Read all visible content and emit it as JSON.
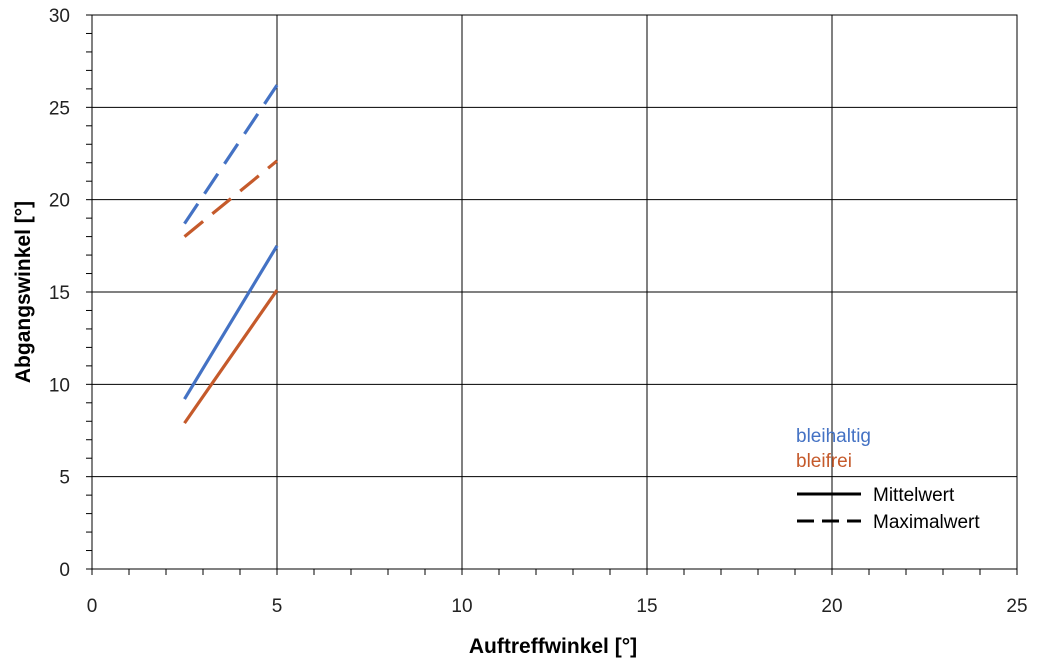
{
  "chart_data": {
    "type": "line",
    "title": "",
    "xlabel": "Auftreffwinkel [°]",
    "ylabel": "Abgangswinkel [°]",
    "xlim": [
      0,
      25
    ],
    "ylim": [
      0,
      30
    ],
    "x_major_ticks": [
      0,
      5,
      10,
      15,
      20,
      25
    ],
    "y_major_ticks": [
      0,
      5,
      10,
      15,
      20,
      25,
      30
    ],
    "grid": true,
    "legend_position": "bottom-right",
    "material_legend": [
      {
        "label": "bleihaltig",
        "color": "#4472c4"
      },
      {
        "label": "bleifrei",
        "color": "#c55a2b"
      }
    ],
    "style_legend": [
      {
        "label": "Mittelwert",
        "dash": "solid"
      },
      {
        "label": "Maximalwert",
        "dash": "dashed"
      }
    ],
    "series": [
      {
        "material": "bleihaltig",
        "stat": "Mittelwert",
        "color": "#4472c4",
        "dash": "solid",
        "x": [
          2.5,
          5
        ],
        "y": [
          9.2,
          17.5
        ]
      },
      {
        "material": "bleifrei",
        "stat": "Mittelwert",
        "color": "#c55a2b",
        "dash": "solid",
        "x": [
          2.5,
          5
        ],
        "y": [
          7.9,
          15.1
        ]
      },
      {
        "material": "bleihaltig",
        "stat": "Maximalwert",
        "color": "#4472c4",
        "dash": "dashed",
        "x": [
          2.5,
          5
        ],
        "y": [
          18.7,
          26.2
        ]
      },
      {
        "material": "bleifrei",
        "stat": "Maximalwert",
        "color": "#c55a2b",
        "dash": "dashed",
        "x": [
          2.5,
          5
        ],
        "y": [
          18.0,
          22.1
        ]
      }
    ]
  }
}
